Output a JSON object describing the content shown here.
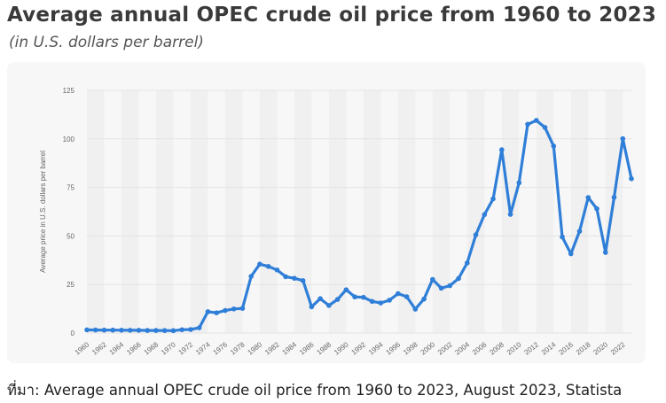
{
  "title": "Average annual OPEC crude oil price from 1960 to 2023",
  "subtitle": "(in U.S. dollars per barrel)",
  "source": "ที่มา: Average annual OPEC crude oil price from 1960 to 2023, August 2023, Statista",
  "colors": {
    "line": "#2f7ed8",
    "grid": "#e3e3e3",
    "band": "#f0f0f0"
  },
  "chart_data": {
    "type": "line",
    "title": "Average annual OPEC crude oil price from 1960 to 2023",
    "subtitle": "(in U.S. dollars per barrel)",
    "xlabel": "",
    "ylabel": "Average price in U.S. dollars per barrel",
    "ylim": [
      0,
      125
    ],
    "yticks": [
      0,
      25,
      50,
      75,
      100,
      125
    ],
    "xticks": [
      1960,
      1962,
      1964,
      1966,
      1968,
      1970,
      1972,
      1974,
      1976,
      1978,
      1980,
      1982,
      1984,
      1986,
      1988,
      1990,
      1992,
      1994,
      1996,
      1998,
      2000,
      2002,
      2004,
      2006,
      2008,
      2010,
      2012,
      2014,
      2016,
      2018,
      2020,
      2022
    ],
    "grid": true,
    "series": [
      {
        "name": "",
        "x": [
          1960,
          1961,
          1962,
          1963,
          1964,
          1965,
          1966,
          1967,
          1968,
          1969,
          1970,
          1971,
          1972,
          1973,
          1974,
          1975,
          1976,
          1977,
          1978,
          1979,
          1980,
          1981,
          1982,
          1983,
          1984,
          1985,
          1986,
          1987,
          1988,
          1989,
          1990,
          1991,
          1992,
          1993,
          1994,
          1995,
          1996,
          1997,
          1998,
          1999,
          2000,
          2001,
          2002,
          2003,
          2004,
          2005,
          2006,
          2007,
          2008,
          2009,
          2010,
          2011,
          2012,
          2013,
          2014,
          2015,
          2016,
          2017,
          2018,
          2019,
          2020,
          2021,
          2022,
          2023
        ],
        "values": [
          1.63,
          1.57,
          1.52,
          1.5,
          1.45,
          1.42,
          1.4,
          1.33,
          1.32,
          1.27,
          1.21,
          1.7,
          1.82,
          2.7,
          11,
          10.4,
          11.6,
          12.4,
          12.7,
          29.2,
          35.5,
          34.3,
          32.5,
          29.0,
          28.2,
          27.0,
          13.5,
          17.7,
          14.2,
          17.3,
          22.3,
          18.6,
          18.4,
          16.3,
          15.5,
          16.9,
          20.3,
          18.7,
          12.3,
          17.5,
          27.6,
          23.1,
          24.4,
          28.1,
          36.1,
          50.6,
          61.0,
          69.1,
          94.4,
          61.1,
          77.4,
          107.5,
          109.5,
          105.9,
          96.3,
          49.5,
          40.8,
          52.4,
          69.8,
          64.0,
          41.5,
          69.9,
          100.1,
          79.5
        ]
      }
    ]
  }
}
